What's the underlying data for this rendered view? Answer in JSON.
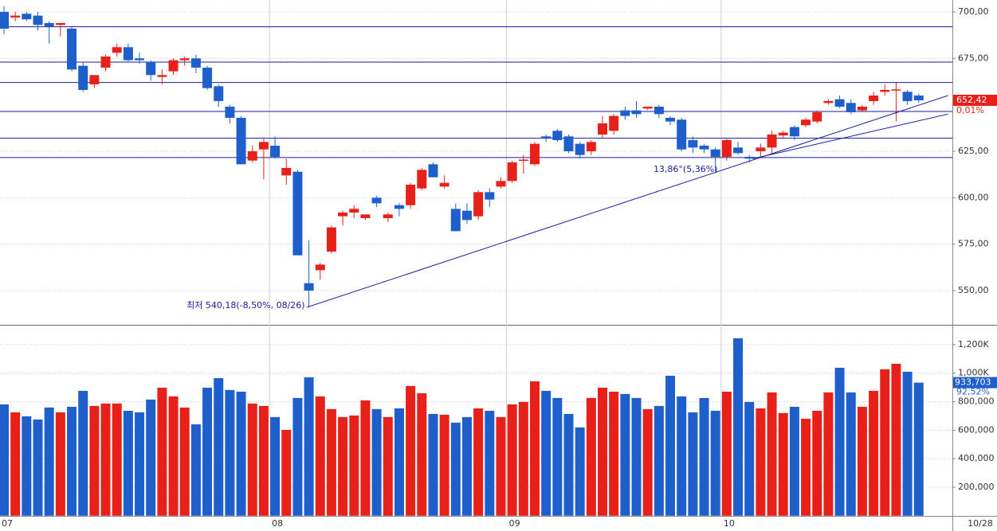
{
  "chart_data": [
    {
      "type": "candlestick",
      "categories": [
        "07",
        null,
        null,
        null,
        null,
        null,
        null,
        null,
        null,
        null,
        null,
        null,
        null,
        null,
        null,
        null,
        null,
        null,
        null,
        null,
        null,
        null,
        null,
        null,
        "08",
        null,
        null,
        null,
        null,
        null,
        null,
        null,
        null,
        null,
        null,
        null,
        null,
        null,
        null,
        null,
        null,
        null,
        null,
        null,
        null,
        "09",
        null,
        null,
        null,
        null,
        null,
        null,
        null,
        null,
        null,
        null,
        null,
        null,
        null,
        null,
        null,
        null,
        null,
        null,
        "10",
        null,
        null,
        null,
        null,
        null,
        null,
        null,
        null,
        null,
        null,
        null,
        null,
        null,
        null,
        null,
        null,
        null
      ],
      "open": [
        700,
        697,
        699,
        698,
        694,
        693,
        691,
        671,
        661,
        670,
        678,
        681,
        675,
        673,
        665,
        668,
        674,
        675,
        670,
        660,
        649,
        643,
        620,
        626,
        628,
        612,
        614,
        554,
        561,
        571,
        590,
        592,
        589,
        600,
        589,
        596,
        596,
        605,
        618,
        606,
        594,
        593,
        590,
        603,
        606,
        609,
        620,
        618,
        633,
        636,
        633,
        629,
        625,
        634,
        636,
        647,
        647,
        648,
        649,
        643,
        642,
        631,
        628,
        626,
        622,
        627,
        622,
        625,
        627,
        633.5,
        638,
        639,
        641,
        651,
        653,
        651,
        647,
        652,
        657,
        658,
        657,
        655
      ],
      "high": [
        703,
        700,
        700,
        700,
        695,
        694,
        692,
        673,
        666,
        677,
        683,
        683,
        678,
        674,
        669,
        675,
        676,
        677,
        671,
        661,
        650,
        644,
        628,
        632,
        633,
        621,
        615,
        577,
        565,
        585,
        593,
        596,
        591,
        601,
        592,
        597,
        608,
        616,
        619,
        612,
        597,
        597,
        604,
        605,
        611,
        620,
        623,
        630,
        634,
        637,
        634,
        630,
        631,
        644,
        645,
        649,
        652,
        649,
        650,
        644,
        643,
        633,
        629,
        627,
        632,
        630,
        623,
        629,
        636,
        636,
        639,
        643,
        647,
        653,
        655,
        653,
        650,
        657,
        661,
        662,
        658,
        656
      ],
      "low": [
        688,
        695,
        695,
        690,
        683,
        687,
        668,
        657,
        659,
        668,
        676,
        673,
        672,
        663,
        661,
        666,
        671,
        667,
        658,
        649,
        640,
        618,
        619,
        610,
        621,
        607,
        569,
        541,
        556,
        570,
        585,
        589,
        588,
        595,
        587,
        590,
        594,
        604,
        611,
        605,
        582,
        586,
        588,
        595,
        605,
        608,
        613,
        617,
        630,
        630,
        624,
        621,
        623,
        632,
        634,
        642,
        643,
        647,
        643,
        639,
        625,
        624,
        624,
        614,
        620,
        623,
        619,
        622,
        624,
        632,
        631,
        638,
        640,
        650,
        648,
        645,
        646,
        650,
        655,
        641,
        650,
        651
      ],
      "close": [
        691,
        698,
        696,
        693,
        692,
        694,
        669,
        658,
        666,
        676,
        681,
        674,
        674,
        666,
        666,
        674,
        675,
        670,
        659,
        652,
        643,
        618,
        625,
        630,
        622,
        616,
        569,
        550,
        564,
        584,
        592,
        594,
        591,
        597,
        591,
        594,
        607,
        615,
        611,
        608,
        582,
        588,
        603,
        599,
        609,
        619,
        620.5,
        629,
        632,
        631,
        625,
        623,
        630,
        640,
        644,
        644,
        645,
        649,
        645,
        641,
        626,
        627,
        626,
        622,
        631,
        624,
        621,
        627,
        634,
        635,
        633,
        642,
        646,
        652,
        649,
        646,
        649,
        655,
        658,
        658.3,
        652,
        652.42
      ],
      "ylim": [
        531.6,
        706.4
      ],
      "yticks": [
        {
          "value": 700,
          "label": "700,00"
        },
        {
          "value": 675,
          "label": "675,00"
        },
        {
          "value": 625,
          "label": "625,00"
        },
        {
          "value": 600,
          "label": "600,00"
        },
        {
          "value": 575,
          "label": "575,00"
        },
        {
          "value": 550,
          "label": "550,00"
        }
      ],
      "up_color": "#e8201a",
      "down_color": "#1f5fcc",
      "hlines": [
        692,
        673,
        662,
        646.4,
        632,
        621.6
      ],
      "line_color": "#1a1aa0",
      "trendlines": [
        {
          "x": [
            26.8,
            83.6
          ],
          "y": [
            541,
            655
          ]
        },
        {
          "x": [
            66.3,
            83.6
          ],
          "y": [
            621,
            645
          ]
        }
      ],
      "annotations": [
        {
          "text": "최저 540,18(-8,50%, 08/26)"
        },
        {
          "text": "13,86°(5,36%)"
        }
      ],
      "last": {
        "value": 652.42,
        "label": "652,42"
      },
      "change": "0,01%",
      "last_date": "10/28"
    },
    {
      "type": "bar",
      "values": [
        781000,
        725000,
        697000,
        675000,
        759000,
        725000,
        764000,
        876000,
        770000,
        787000,
        787000,
        736000,
        725000,
        815000,
        898000,
        837000,
        759000,
        641000,
        898000,
        965000,
        882000,
        870000,
        787000,
        770000,
        692000,
        602000,
        826000,
        971000,
        837000,
        748000,
        692000,
        703000,
        809000,
        748000,
        692000,
        753000,
        910000,
        859000,
        714000,
        708000,
        653000,
        692000,
        753000,
        736000,
        692000,
        781000,
        798000,
        943000,
        876000,
        826000,
        714000,
        619000,
        826000,
        898000,
        870000,
        854000,
        826000,
        748000,
        770000,
        982000,
        837000,
        725000,
        826000,
        736000,
        870000,
        1245000,
        798000,
        753000,
        865000,
        720000,
        764000,
        680000,
        736000,
        865000,
        1038000,
        865000,
        764000,
        876000,
        1027000,
        1066000,
        1010000,
        933703
      ],
      "ylim": [
        0,
        1328000
      ],
      "yticks": [
        {
          "value": 1200000,
          "label": "1,200K"
        },
        {
          "value": 1000000,
          "label": "1,000K"
        },
        {
          "value": 800000,
          "label": "800,000"
        },
        {
          "value": 600000,
          "label": "600,000"
        },
        {
          "value": 400000,
          "label": "400,000"
        },
        {
          "value": 200000,
          "label": "200,000"
        }
      ],
      "last": {
        "value": 933703,
        "label": "933,703"
      },
      "ratio": "92,52%"
    }
  ]
}
